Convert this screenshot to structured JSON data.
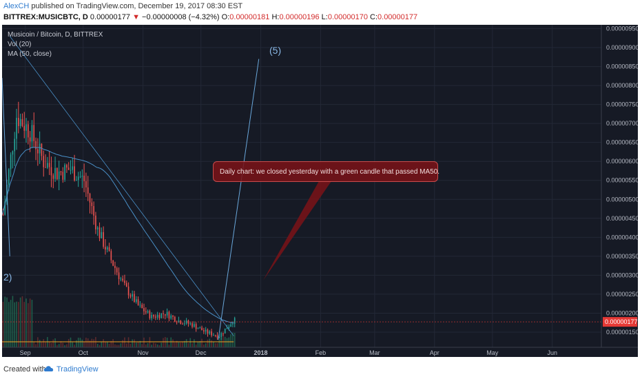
{
  "header": {
    "author": "AlexCH",
    "published": "published on TradingView.com, December 19, 2017 08:30 EST",
    "symbol": "BITTREX:MUSICBTC, D",
    "last": "0.00000177",
    "arrow": "▼",
    "change": "−0.00000008 (−4.32%)",
    "o_label": "O:",
    "o_value": "0.00000181",
    "h_label": "H:",
    "h_value": "0.00000196",
    "l_label": "L:",
    "l_value": "0.00000170",
    "c_label": "C:",
    "c_value": "0.00000177"
  },
  "legend": {
    "title": "Musicoin / Bitcoin, D, BITTREX",
    "vol": "Vol (20)",
    "ma": "MA (50, close)"
  },
  "annotation": {
    "callout": "Daily chart: we closed yesterday with a green candle that passed MA50.",
    "wave5": "(5)",
    "wave2": "2)"
  },
  "footer": {
    "created": "Created with",
    "brand": "TradingView"
  },
  "colors": {
    "up": "#26a69a",
    "down": "#ef5350",
    "ma": "#4a90c8",
    "volume_ma": "#f0a020",
    "last_price": "#e53935",
    "background": "#161a25"
  },
  "chart_data": {
    "type": "candlestick",
    "title": "Musicoin / Bitcoin, D, BITTREX",
    "xlabel": "",
    "ylabel": "",
    "ylim": [
      1.1e-06,
      9.6e-06
    ],
    "x_ticks": [
      "Sep",
      "Oct",
      "Nov",
      "Dec",
      "2018",
      "Feb",
      "Mar",
      "Apr",
      "May",
      "Jun"
    ],
    "y_ticks": [
      "0.00000950",
      "0.00000900",
      "0.00000850",
      "0.00000800",
      "0.00000750",
      "0.00000700",
      "0.00000650",
      "0.00000600",
      "0.00000550",
      "0.00000500",
      "0.00000450",
      "0.00000400",
      "0.00000350",
      "0.00000300",
      "0.00000250",
      "0.00000200",
      "0.00000150"
    ],
    "last_price_label": "0.00000177",
    "series": [
      {
        "name": "MUSICBTC",
        "x": [
          "2017-08-20",
          "2017-08-27",
          "2017-09-03",
          "2017-09-10",
          "2017-09-17",
          "2017-09-24",
          "2017-10-01",
          "2017-10-08",
          "2017-10-15",
          "2017-10-22",
          "2017-10-29",
          "2017-11-05",
          "2017-11-12",
          "2017-11-19",
          "2017-11-26",
          "2017-12-03",
          "2017-12-10",
          "2017-12-17"
        ],
        "values": [
          4.6e-06,
          7.2e-06,
          6.8e-06,
          6e-06,
          5.7e-06,
          5.8e-06,
          5.5e-06,
          4.2e-06,
          3.4e-06,
          2.7e-06,
          2.2e-06,
          1.9e-06,
          2e-06,
          1.8e-06,
          1.7e-06,
          1.5e-06,
          1.4e-06,
          1.8e-06
        ]
      }
    ]
  }
}
